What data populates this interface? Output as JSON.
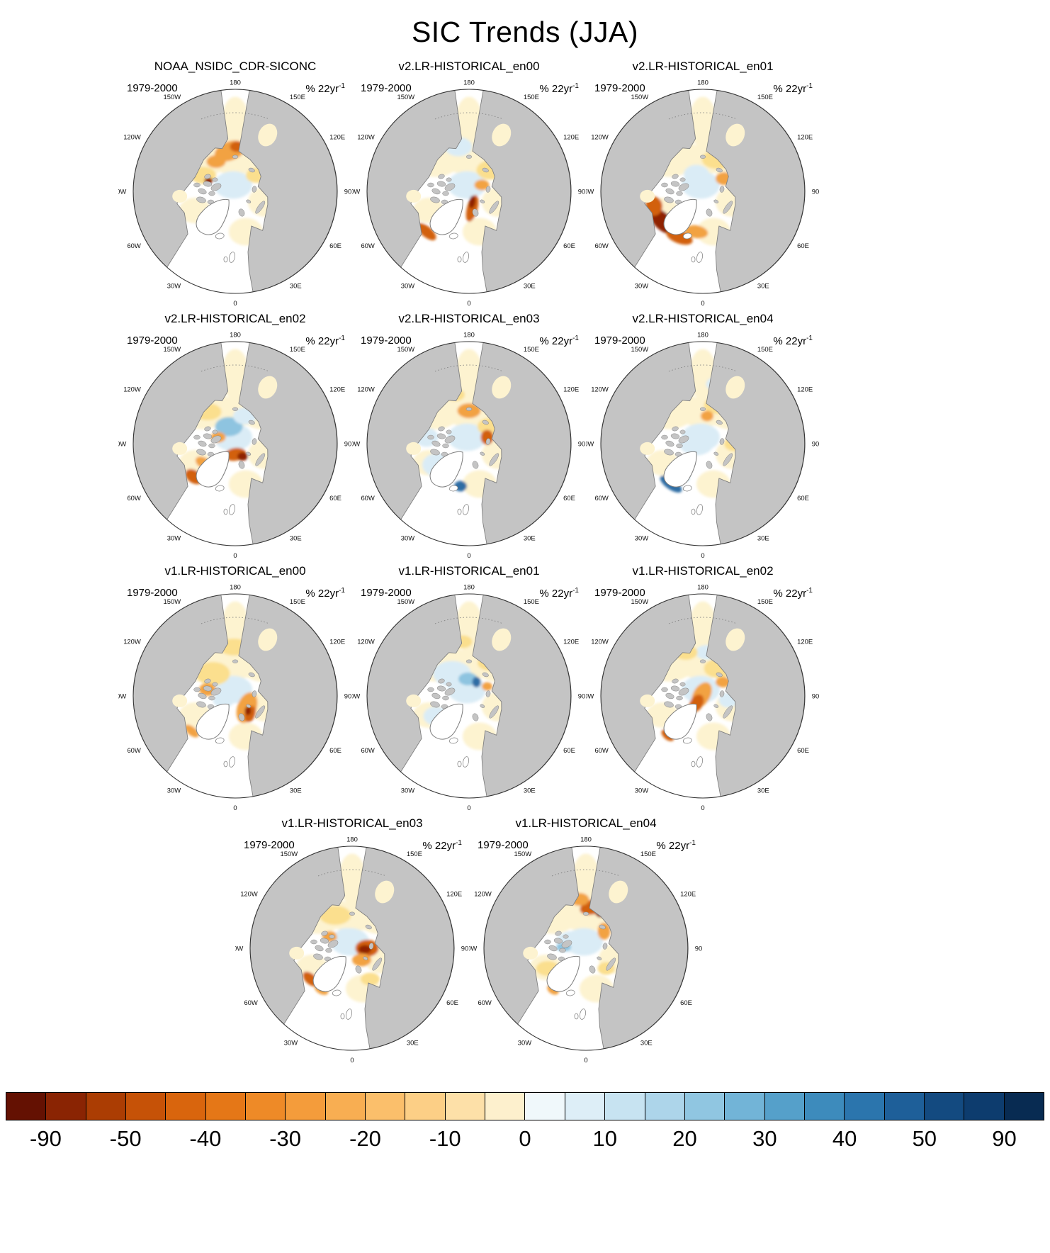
{
  "title": "SIC Trends (JJA)",
  "panel_common": {
    "period": "1979-2000",
    "units_base": "% 22yr",
    "units_exp": "-1"
  },
  "lon_labels": [
    {
      "text": "180",
      "angle": 0
    },
    {
      "text": "150E",
      "angle": 30
    },
    {
      "text": "120E",
      "angle": 60
    },
    {
      "text": "90E",
      "angle": 90
    },
    {
      "text": "60E",
      "angle": 120
    },
    {
      "text": "30E",
      "angle": 150
    },
    {
      "text": "0",
      "angle": 180
    },
    {
      "text": "30W",
      "angle": 210
    },
    {
      "text": "60W",
      "angle": 240
    },
    {
      "text": "90W",
      "angle": 270
    },
    {
      "text": "120W",
      "angle": 300
    },
    {
      "text": "150W",
      "angle": 330
    }
  ],
  "palette": {
    "pale_yellow": "#fdf3d0",
    "yellow": "#fbdf8e",
    "orange": "#f2a243",
    "dark_orange": "#d2610e",
    "deep_red": "#8f2406",
    "pale_blue": "#daecf6",
    "blue": "#8ec4e0",
    "deep_blue": "#2e6da4"
  },
  "map_colors": {
    "land": "#c4c4c4",
    "coast": "#808080",
    "ocean": "#ffffff",
    "outline": "#333333"
  },
  "base_blobs": [
    [
      110,
      45,
      13,
      24,
      0,
      "pale_yellow"
    ],
    [
      82,
      78,
      24,
      18,
      -15,
      "pale_yellow"
    ],
    [
      132,
      80,
      22,
      16,
      20,
      "pale_yellow"
    ],
    [
      138,
      120,
      16,
      14,
      0,
      "pale_yellow"
    ],
    [
      120,
      148,
      16,
      13,
      0,
      "pale_yellow"
    ],
    [
      72,
      128,
      15,
      12,
      0,
      "pale_yellow"
    ],
    [
      110,
      80,
      26,
      14,
      0,
      "pale_yellow"
    ],
    [
      108,
      104,
      18,
      13,
      0,
      "pale_blue"
    ]
  ],
  "panels": [
    {
      "title": "NOAA_NSIDC_CDR-SICONC",
      "features": [
        [
          105,
          72,
          15,
          9,
          -20,
          "orange"
        ],
        [
          112,
          68,
          7,
          5,
          0,
          "dark_orange"
        ],
        [
          92,
          82,
          9,
          6,
          0,
          "orange"
        ],
        [
          80,
          95,
          12,
          8,
          0,
          "yellow"
        ],
        [
          130,
          95,
          10,
          7,
          0,
          "yellow"
        ],
        [
          108,
          106,
          14,
          10,
          0,
          "pale_blue"
        ],
        [
          85,
          100,
          4,
          3,
          0,
          "deep_red"
        ]
      ]
    },
    {
      "title": "v2.LR-HISTORICAL_en00",
      "features": [
        [
          113,
          126,
          5,
          13,
          15,
          "dark_orange"
        ],
        [
          113,
          120,
          3,
          6,
          10,
          "deep_red"
        ],
        [
          70,
          148,
          11,
          5,
          40,
          "dark_orange"
        ],
        [
          130,
          90,
          13,
          9,
          0,
          "yellow"
        ],
        [
          122,
          104,
          7,
          5,
          0,
          "orange"
        ],
        [
          100,
          68,
          13,
          9,
          0,
          "pale_blue"
        ],
        [
          140,
          66,
          9,
          7,
          0,
          "pale_blue"
        ]
      ]
    },
    {
      "title": "v2.LR-HISTORICAL_en01",
      "features": [
        [
          72,
          138,
          15,
          8,
          45,
          "deep_red"
        ],
        [
          88,
          153,
          13,
          6,
          20,
          "dark_orange"
        ],
        [
          64,
          124,
          8,
          9,
          0,
          "dark_orange"
        ],
        [
          104,
          148,
          11,
          6,
          10,
          "orange"
        ],
        [
          124,
          80,
          15,
          9,
          0,
          "yellow"
        ],
        [
          130,
          98,
          8,
          6,
          0,
          "orange"
        ],
        [
          104,
          94,
          12,
          9,
          0,
          "pale_blue"
        ]
      ]
    },
    {
      "title": "v2.LR-HISTORICAL_en02",
      "features": [
        [
          110,
          120,
          10,
          6,
          -10,
          "dark_orange"
        ],
        [
          117,
          122,
          5,
          4,
          0,
          "deep_red"
        ],
        [
          71,
          141,
          9,
          6,
          35,
          "dark_orange"
        ],
        [
          104,
          94,
          13,
          9,
          0,
          "blue"
        ],
        [
          119,
          84,
          11,
          8,
          0,
          "pale_blue"
        ],
        [
          84,
          80,
          13,
          8,
          0,
          "yellow"
        ],
        [
          94,
          104,
          7,
          5,
          0,
          "orange"
        ],
        [
          80,
          128,
          8,
          5,
          30,
          "orange"
        ]
      ]
    },
    {
      "title": "v2.LR-HISTORICAL_en03",
      "features": [
        [
          110,
          79,
          11,
          7,
          0,
          "orange"
        ],
        [
          129,
          94,
          11,
          8,
          0,
          "yellow"
        ],
        [
          127,
          104,
          6,
          7,
          0,
          "dark_orange"
        ],
        [
          102,
          150,
          6,
          5,
          0,
          "deep_blue"
        ],
        [
          80,
          130,
          14,
          11,
          0,
          "pale_blue"
        ],
        [
          70,
          104,
          11,
          9,
          0,
          "pale_blue"
        ],
        [
          97,
          64,
          9,
          6,
          0,
          "yellow"
        ]
      ]
    },
    {
      "title": "v2.LR-HISTORICAL_en04",
      "features": [
        [
          80,
          148,
          12,
          5,
          35,
          "deep_blue"
        ],
        [
          89,
          139,
          9,
          6,
          30,
          "blue"
        ],
        [
          104,
          110,
          16,
          11,
          0,
          "pale_blue"
        ],
        [
          124,
          74,
          13,
          8,
          0,
          "yellow"
        ],
        [
          114,
          84,
          6,
          5,
          0,
          "orange"
        ],
        [
          139,
          110,
          9,
          7,
          0,
          "yellow"
        ],
        [
          124,
          54,
          11,
          7,
          0,
          "pale_blue"
        ]
      ]
    },
    {
      "title": "v1.LR-HISTORICAL_en00",
      "features": [
        [
          121,
          121,
          9,
          15,
          20,
          "orange"
        ],
        [
          124,
          127,
          5,
          8,
          20,
          "dark_orange"
        ],
        [
          122,
          124,
          3,
          4,
          0,
          "deep_red"
        ],
        [
          89,
          89,
          16,
          11,
          0,
          "yellow"
        ],
        [
          84,
          104,
          8,
          6,
          0,
          "orange"
        ],
        [
          109,
          64,
          14,
          8,
          0,
          "yellow"
        ],
        [
          99,
          114,
          10,
          7,
          0,
          "pale_blue"
        ],
        [
          69,
          143,
          8,
          4,
          40,
          "orange"
        ]
      ]
    },
    {
      "title": "v1.LR-HISTORICAL_en01",
      "features": [
        [
          94,
          89,
          18,
          12,
          0,
          "pale_blue"
        ],
        [
          109,
          94,
          9,
          6,
          0,
          "blue"
        ],
        [
          117,
          97,
          4,
          5,
          0,
          "deep_blue"
        ],
        [
          79,
          129,
          12,
          9,
          0,
          "pale_blue"
        ],
        [
          87,
          141,
          6,
          4,
          30,
          "blue"
        ],
        [
          129,
          79,
          11,
          7,
          0,
          "yellow"
        ],
        [
          104,
          59,
          9,
          6,
          0,
          "yellow"
        ],
        [
          127,
          101,
          5,
          4,
          0,
          "orange"
        ]
      ]
    },
    {
      "title": "v1.LR-HISTORICAL_en02",
      "features": [
        [
          109,
          109,
          8,
          13,
          30,
          "orange"
        ],
        [
          104,
          117,
          6,
          9,
          30,
          "dark_orange"
        ],
        [
          87,
          137,
          5,
          7,
          40,
          "deep_red"
        ],
        [
          77,
          147,
          7,
          4,
          40,
          "dark_orange"
        ],
        [
          124,
          84,
          13,
          9,
          0,
          "yellow"
        ],
        [
          129,
          97,
          7,
          5,
          0,
          "orange"
        ],
        [
          114,
          69,
          11,
          7,
          0,
          "pale_blue"
        ],
        [
          134,
          114,
          9,
          7,
          0,
          "pale_blue"
        ],
        [
          94,
          69,
          11,
          7,
          0,
          "yellow"
        ]
      ]
    },
    {
      "title": "v1.LR-HISTORICAL_en03",
      "features": [
        [
          124,
          110,
          11,
          8,
          0,
          "dark_orange"
        ],
        [
          122,
          111,
          6,
          4,
          0,
          "deep_red"
        ],
        [
          119,
          121,
          9,
          6,
          0,
          "orange"
        ],
        [
          71,
          139,
          9,
          5,
          40,
          "dark_orange"
        ],
        [
          81,
          149,
          7,
          4,
          30,
          "orange"
        ],
        [
          94,
          79,
          15,
          9,
          0,
          "yellow"
        ],
        [
          89,
          99,
          7,
          5,
          0,
          "orange"
        ],
        [
          104,
          97,
          9,
          6,
          0,
          "pale_blue"
        ],
        [
          127,
          139,
          9,
          6,
          0,
          "yellow"
        ]
      ]
    },
    {
      "title": "v1.LR-HISTORICAL_en04",
      "features": [
        [
          117,
          71,
          13,
          7,
          -15,
          "dark_orange"
        ],
        [
          124,
          77,
          5,
          4,
          0,
          "deep_red"
        ],
        [
          104,
          64,
          9,
          6,
          0,
          "orange"
        ],
        [
          127,
          94,
          6,
          8,
          0,
          "orange"
        ],
        [
          97,
          104,
          15,
          10,
          0,
          "pale_blue"
        ],
        [
          89,
          109,
          7,
          4,
          0,
          "blue"
        ],
        [
          74,
          129,
          11,
          7,
          0,
          "yellow"
        ],
        [
          129,
          129,
          8,
          6,
          0,
          "yellow"
        ],
        [
          79,
          149,
          6,
          4,
          35,
          "orange"
        ]
      ]
    }
  ],
  "colorbar": {
    "colors": [
      "#641102",
      "#8a2403",
      "#ab3d03",
      "#c65207",
      "#d9650d",
      "#e57717",
      "#ee8a27",
      "#f49c3b",
      "#f8ae52",
      "#fbbf6b",
      "#fccf86",
      "#fde0a8",
      "#fdf0cd",
      "#f0f8fb",
      "#ddeef7",
      "#c7e3f1",
      "#add5ea",
      "#90c6e1",
      "#72b4d7",
      "#55a0ca",
      "#3d8bbc",
      "#2b75ad",
      "#1e5f99",
      "#134a80",
      "#0d3c6e",
      "#082b52"
    ],
    "ticks": [
      {
        "label": "-90",
        "pos": 3.85
      },
      {
        "label": "-50",
        "pos": 11.54
      },
      {
        "label": "-40",
        "pos": 19.23
      },
      {
        "label": "-30",
        "pos": 26.92
      },
      {
        "label": "-20",
        "pos": 34.62
      },
      {
        "label": "-10",
        "pos": 42.31
      },
      {
        "label": "0",
        "pos": 50
      },
      {
        "label": "10",
        "pos": 57.69
      },
      {
        "label": "20",
        "pos": 65.38
      },
      {
        "label": "30",
        "pos": 73.08
      },
      {
        "label": "40",
        "pos": 80.77
      },
      {
        "label": "50",
        "pos": 88.46
      },
      {
        "label": "90",
        "pos": 96.15
      }
    ]
  },
  "chart_data": {
    "type": "heatmap",
    "title": "SIC Trends (JJA)",
    "period": "1979-2000",
    "units": "% 22yr-1",
    "layout_rows": [
      3,
      3,
      3,
      2
    ],
    "panels": [
      "NOAA_NSIDC_CDR-SICONC",
      "v2.LR-HISTORICAL_en00",
      "v2.LR-HISTORICAL_en01",
      "v2.LR-HISTORICAL_en02",
      "v2.LR-HISTORICAL_en03",
      "v2.LR-HISTORICAL_en04",
      "v1.LR-HISTORICAL_en00",
      "v1.LR-HISTORICAL_en01",
      "v1.LR-HISTORICAL_en02",
      "v1.LR-HISTORICAL_en03",
      "v1.LR-HISTORICAL_en04"
    ],
    "longitude_ring_labels": [
      "180",
      "150E",
      "120E",
      "90E",
      "60E",
      "30E",
      "0",
      "30W",
      "60W",
      "90W",
      "120W",
      "150W"
    ],
    "colorbar_levels": [
      -90,
      -70,
      -50,
      -45,
      -40,
      -35,
      -30,
      -25,
      -20,
      -15,
      -10,
      -5,
      0,
      5,
      10,
      15,
      20,
      25,
      30,
      35,
      40,
      45,
      50,
      70,
      90
    ],
    "colorbar_tick_labels": [
      "-90",
      "-50",
      "-40",
      "-30",
      "-20",
      "-10",
      "0",
      "10",
      "20",
      "30",
      "40",
      "50",
      "90"
    ],
    "colorbar_extend": "both"
  }
}
